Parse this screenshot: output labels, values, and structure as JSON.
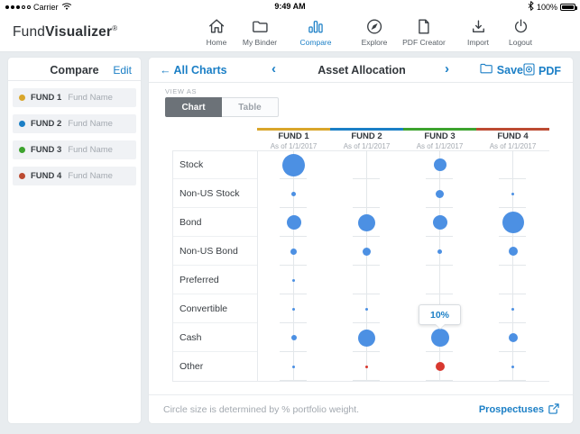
{
  "status_bar": {
    "carrier": "Carrier",
    "time": "9:49 AM",
    "battery": "100%"
  },
  "nav": {
    "logo_regular": "Fund",
    "logo_bold": "Visualizer",
    "logo_mark": "®",
    "items": [
      {
        "label": "Home",
        "icon": "home-icon",
        "active": false
      },
      {
        "label": "My Binder",
        "icon": "binder-folder-icon",
        "active": false
      },
      {
        "label": "Compare",
        "icon": "compare-bars-icon",
        "active": true
      },
      {
        "label": "Explore",
        "icon": "explore-compass-icon",
        "active": false
      },
      {
        "label": "PDF Creator",
        "icon": "pdf-document-icon",
        "active": false
      },
      {
        "label": "Import",
        "icon": "import-arrow-icon",
        "active": false
      },
      {
        "label": "Logout",
        "icon": "logout-power-icon",
        "active": false
      }
    ]
  },
  "sidebar": {
    "title": "Compare",
    "edit_label": "Edit",
    "funds": [
      {
        "label": "FUND 1",
        "placeholder": "Fund Name",
        "color": "#D9A62B"
      },
      {
        "label": "FUND 2",
        "placeholder": "Fund Name",
        "color": "#1B7FC6"
      },
      {
        "label": "FUND 3",
        "placeholder": "Fund Name",
        "color": "#3DA32E"
      },
      {
        "label": "FUND 4",
        "placeholder": "Fund Name",
        "color": "#BC4B32"
      }
    ]
  },
  "main": {
    "header": {
      "back_arrow": "←",
      "back_label": "All Charts",
      "prev": "‹",
      "title": "Asset Allocation",
      "next": "›",
      "save_label": "Save",
      "pdf_label": "PDF"
    },
    "view_as": {
      "label": "VIEW AS",
      "options": [
        {
          "label": "Chart",
          "active": true
        },
        {
          "label": "Table",
          "active": false
        }
      ]
    },
    "footer": {
      "note": "Circle size is determined by % portfolio weight.",
      "link_label": "Prospectuses"
    }
  },
  "chart_data": {
    "type": "bubble-matrix",
    "title": "Asset Allocation",
    "note": "Circle size is determined by % portfolio weight.",
    "bubble_color_default": "#4C90E3",
    "bubble_color_alt": "#D8382F",
    "columns": [
      {
        "label": "FUND 1",
        "as_of": "As of 1/1/2017",
        "color": "#D9A62B"
      },
      {
        "label": "FUND 2",
        "as_of": "As of 1/1/2017",
        "color": "#1B7FC6"
      },
      {
        "label": "FUND 3",
        "as_of": "As of 1/1/2017",
        "color": "#3DA32E"
      },
      {
        "label": "FUND 4",
        "as_of": "As of 1/1/2017",
        "color": "#BC4B32"
      }
    ],
    "rows": [
      "Stock",
      "Non-US Stock",
      "Bond",
      "Non-US Bond",
      "Preferred",
      "Convertible",
      "Cash",
      "Other"
    ],
    "tooltip": {
      "text": "10%",
      "row": "Cash",
      "column": "FUND 3"
    },
    "bubbles": [
      [
        {
          "d": 25,
          "color": "#4C90E3"
        },
        {
          "d": 0,
          "color": "#4C90E3"
        },
        {
          "d": 14,
          "color": "#4C90E3"
        },
        {
          "d": 0,
          "color": "#4C90E3"
        }
      ],
      [
        {
          "d": 5,
          "color": "#4C90E3"
        },
        {
          "d": 0,
          "color": "#4C90E3"
        },
        {
          "d": 9,
          "color": "#4C90E3"
        },
        {
          "d": 3,
          "color": "#4C90E3"
        }
      ],
      [
        {
          "d": 16,
          "color": "#4C90E3"
        },
        {
          "d": 19,
          "color": "#4C90E3"
        },
        {
          "d": 16,
          "color": "#4C90E3"
        },
        {
          "d": 24,
          "color": "#4C90E3"
        }
      ],
      [
        {
          "d": 7,
          "color": "#4C90E3"
        },
        {
          "d": 9,
          "color": "#4C90E3"
        },
        {
          "d": 5,
          "color": "#4C90E3"
        },
        {
          "d": 10,
          "color": "#4C90E3"
        }
      ],
      [
        {
          "d": 3,
          "color": "#4C90E3"
        },
        {
          "d": 0,
          "color": "#4C90E3"
        },
        {
          "d": 0,
          "color": "#4C90E3"
        },
        {
          "d": 0,
          "color": "#4C90E3"
        }
      ],
      [
        {
          "d": 3,
          "color": "#4C90E3"
        },
        {
          "d": 3,
          "color": "#4C90E3"
        },
        {
          "d": 0,
          "color": "#4C90E3"
        },
        {
          "d": 3,
          "color": "#4C90E3"
        }
      ],
      [
        {
          "d": 6,
          "color": "#4C90E3"
        },
        {
          "d": 19,
          "color": "#4C90E3"
        },
        {
          "d": 20,
          "color": "#4C90E3"
        },
        {
          "d": 10,
          "color": "#4C90E3"
        }
      ],
      [
        {
          "d": 3,
          "color": "#4C90E3"
        },
        {
          "d": 3,
          "color": "#D8382F"
        },
        {
          "d": 10,
          "color": "#D8382F"
        },
        {
          "d": 3,
          "color": "#4C90E3"
        }
      ]
    ]
  }
}
